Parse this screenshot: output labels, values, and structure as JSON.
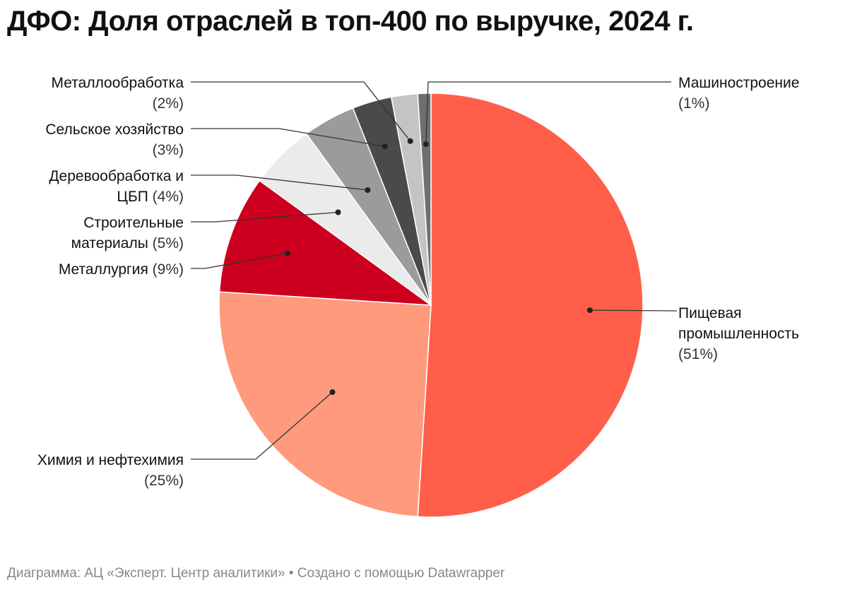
{
  "chart_data": {
    "type": "pie",
    "title": "ДФО: Доля отраслей в топ-400 по выручке, 2024 г.",
    "slices": [
      {
        "label": [
          "Пищевая",
          "промышленность"
        ],
        "value_text": "(51%)",
        "value": 51,
        "color": "#ff5f4a"
      },
      {
        "label": [
          "Химия и нефтехимия"
        ],
        "value_text": "(25%)",
        "value": 25,
        "color": "#ff9a7d"
      },
      {
        "label": [
          "Металлургия"
        ],
        "value_text": "(9%)",
        "value": 9,
        "color": "#cc001e"
      },
      {
        "label": [
          "Строительные",
          "материалы"
        ],
        "value_text": "(5%)",
        "value": 5,
        "color": "#ebebeb"
      },
      {
        "label": [
          "Деревообработка и",
          "ЦБП"
        ],
        "value_text": "(4%)",
        "value": 4,
        "color": "#9b9b9b"
      },
      {
        "label": [
          "Сельское хозяйство"
        ],
        "value_text": "(3%)",
        "value": 3,
        "color": "#4a4a4a"
      },
      {
        "label": [
          "Металлообработка"
        ],
        "value_text": "(2%)",
        "value": 2,
        "color": "#c4c4c4"
      },
      {
        "label": [
          "Машиностроение"
        ],
        "value_text": "(1%)",
        "value": 1,
        "color": "#6f6f6f"
      }
    ]
  },
  "footer": {
    "text": "Диаграмма: АЦ «Эксперт. Центр аналитики» • Создано с помощью Datawrapper"
  }
}
